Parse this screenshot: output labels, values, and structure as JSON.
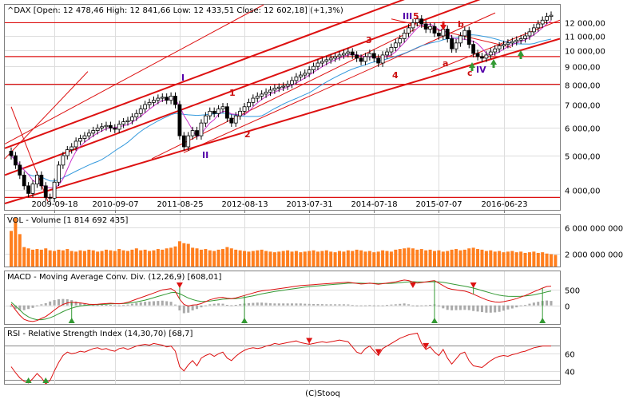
{
  "footer": "(C)Stooq",
  "colors": {
    "red": "#dd1111",
    "dark_red": "#aa0000",
    "purple": "#5500aa",
    "green": "#339933",
    "volume": "#ff7f1e",
    "ma_short": "#cc33cc",
    "ma_long": "#3399dd",
    "grey_bar": "#aaaaaa"
  },
  "chart_data": [
    {
      "type": "candlestick",
      "title": "^DAX [Open: 12 478,46  High: 12 841,66  Low: 12 433,51  Close: 12 602,18] (+1,3%)",
      "y_scale": "log",
      "ylim": [
        3500,
        13500
      ],
      "yticks": [
        {
          "v": 12000,
          "label": "12 000,00"
        },
        {
          "v": 11000,
          "label": "11 000,00"
        },
        {
          "v": 10000,
          "label": "10 000,00"
        },
        {
          "v": 9000,
          "label": "9 000,00"
        },
        {
          "v": 8000,
          "label": "8 000,00"
        },
        {
          "v": 7000,
          "label": "7 000,00"
        },
        {
          "v": 6000,
          "label": "6 000,00"
        },
        {
          "v": 5000,
          "label": "5 000,00"
        },
        {
          "v": 4000,
          "label": "4 000,00"
        }
      ],
      "xticks": [
        {
          "i": 10,
          "label": "2009-09-18"
        },
        {
          "i": 24,
          "label": "2010-09-07"
        },
        {
          "i": 39,
          "label": "2011-08-25"
        },
        {
          "i": 54,
          "label": "2012-08-13"
        },
        {
          "i": 69,
          "label": "2013-07-31"
        },
        {
          "i": 84,
          "label": "2014-07-18"
        },
        {
          "i": 99,
          "label": "2015-07-07"
        },
        {
          "i": 114,
          "label": "2016-06-23"
        }
      ],
      "close": [
        5000,
        4700,
        4400,
        4100,
        3900,
        4150,
        4400,
        4100,
        3800,
        3780,
        4200,
        4700,
        5000,
        5200,
        5300,
        5500,
        5600,
        5700,
        5800,
        5900,
        6000,
        6050,
        6100,
        6000,
        5950,
        6150,
        6250,
        6300,
        6450,
        6600,
        6800,
        7000,
        7100,
        7200,
        7300,
        7350,
        7200,
        7400,
        7000,
        5700,
        5300,
        5700,
        5900,
        5700,
        6200,
        6500,
        6700,
        6600,
        6800,
        6900,
        6400,
        6200,
        6500,
        6700,
        6900,
        7100,
        7300,
        7400,
        7500,
        7600,
        7700,
        7800,
        7850,
        7900,
        8000,
        8200,
        8400,
        8500,
        8600,
        8800,
        9000,
        9200,
        9300,
        9400,
        9500,
        9600,
        9700,
        9800,
        9900,
        9700,
        9500,
        9300,
        9600,
        9800,
        9500,
        9200,
        9700,
        9900,
        10200,
        10500,
        10800,
        11200,
        11600,
        12000,
        12300,
        11900,
        11500,
        11700,
        11200,
        11000,
        11500,
        10800,
        10100,
        10500,
        11000,
        11400,
        10400,
        9800,
        9600,
        9500,
        9700,
        9900,
        10100,
        10300,
        10400,
        10500,
        10600,
        10700,
        10800,
        11000,
        11300,
        11600,
        11900,
        12200,
        12500,
        12600
      ],
      "waves": {
        "I": "I",
        "II": "II",
        "III": "III",
        "IV": "IV",
        "w1": "1",
        "w2": "2",
        "w3": "3",
        "w4": "4",
        "w5": "5",
        "a": "a",
        "b": "b",
        "c": "c"
      }
    },
    {
      "type": "bar",
      "title": "VOL - Volume [1 814 692 435]",
      "ylim": [
        0,
        8000000000
      ],
      "yticks": [
        {
          "v": 6000000000,
          "label": "6 000 000 000"
        },
        {
          "v": 2000000000,
          "label": "2 000 000 000"
        }
      ],
      "values": [
        5500,
        7500,
        5000,
        3000,
        2800,
        2600,
        2700,
        2600,
        2800,
        2500,
        2400,
        2600,
        2500,
        2700,
        2400,
        2300,
        2500,
        2400,
        2600,
        2500,
        2300,
        2400,
        2600,
        2500,
        2400,
        2700,
        2500,
        2400,
        2600,
        2800,
        2500,
        2600,
        2400,
        2500,
        2700,
        2600,
        2800,
        2900,
        3100,
        3900,
        3600,
        3500,
        2900,
        2800,
        2600,
        2700,
        2500,
        2400,
        2600,
        2700,
        3000,
        2800,
        2600,
        2500,
        2400,
        2300,
        2400,
        2500,
        2600,
        2400,
        2300,
        2200,
        2300,
        2400,
        2500,
        2300,
        2400,
        2200,
        2300,
        2400,
        2500,
        2300,
        2400,
        2500,
        2300,
        2200,
        2400,
        2300,
        2500,
        2400,
        2600,
        2500,
        2300,
        2400,
        2200,
        2300,
        2500,
        2400,
        2300,
        2600,
        2700,
        2800,
        2900,
        2800,
        2600,
        2700,
        2500,
        2600,
        2400,
        2500,
        2300,
        2400,
        2600,
        2700,
        2500,
        2600,
        2800,
        2900,
        2700,
        2600,
        2400,
        2500,
        2300,
        2400,
        2200,
        2300,
        2400,
        2200,
        2300,
        2100,
        2200,
        2300,
        2100,
        2200,
        2000,
        1900,
        1800
      ]
    },
    {
      "type": "line",
      "title": "MACD - Moving Average Conv. Div. (12,26,9) [608,01]",
      "ylim": [
        -600,
        1100
      ],
      "yticks": [
        {
          "v": 500,
          "label": "500"
        },
        {
          "v": 0,
          "label": "0"
        }
      ],
      "series": [
        {
          "values": [
            50,
            -150,
            -320,
            -450,
            -500,
            -520,
            -490,
            -420,
            -360,
            -260,
            -150,
            -50,
            30,
            80,
            100,
            90,
            80,
            60,
            40,
            30,
            35,
            50,
            60,
            70,
            60,
            55,
            70,
            100,
            150,
            200,
            250,
            300,
            350,
            400,
            450,
            500,
            520,
            540,
            450,
            200,
            30,
            -20,
            10,
            20,
            60,
            120,
            180,
            220,
            250,
            260,
            230,
            220,
            240,
            280,
            320,
            360,
            400,
            440,
            470,
            490,
            500,
            520,
            540,
            560,
            580,
            600,
            620,
            640,
            650,
            660,
            670,
            680,
            690,
            700,
            710,
            720,
            730,
            740,
            750,
            730,
            710,
            690,
            700,
            720,
            700,
            680,
            700,
            720,
            740,
            760,
            790,
            820,
            800,
            760,
            720,
            740,
            760,
            780,
            800,
            720,
            640,
            560,
            520,
            500,
            480,
            460,
            420,
            360,
            300,
            240,
            180,
            140,
            110,
            100,
            120,
            150,
            180,
            220,
            270,
            320,
            380,
            440,
            500,
            560,
            610,
            620
          ]
        },
        {
          "values": [
            100,
            -20,
            -150,
            -280,
            -370,
            -430,
            -460,
            -460,
            -440,
            -400,
            -340,
            -270,
            -200,
            -140,
            -90,
            -50,
            -20,
            0,
            10,
            20,
            25,
            30,
            40,
            50,
            55,
            55,
            60,
            70,
            90,
            110,
            140,
            170,
            210,
            250,
            290,
            330,
            370,
            410,
            420,
            380,
            310,
            240,
            190,
            150,
            130,
            130,
            140,
            160,
            180,
            200,
            210,
            215,
            220,
            235,
            255,
            280,
            310,
            340,
            370,
            400,
            425,
            450,
            470,
            490,
            510,
            530,
            550,
            570,
            590,
            605,
            620,
            630,
            645,
            660,
            670,
            680,
            690,
            700,
            715,
            720,
            720,
            715,
            710,
            710,
            710,
            705,
            705,
            705,
            710,
            720,
            735,
            750,
            760,
            765,
            760,
            755,
            755,
            760,
            765,
            760,
            745,
            720,
            695,
            670,
            645,
            620,
            590,
            560,
            520,
            480,
            440,
            400,
            360,
            330,
            310,
            295,
            290,
            290,
            295,
            305,
            320,
            340,
            370,
            400,
            435,
            460
          ]
        }
      ]
    },
    {
      "type": "line",
      "title": "RSI - Relative Strength Index (14,30,70) [68,7]",
      "ylim": [
        25,
        90
      ],
      "yticks": [
        {
          "v": 60,
          "label": "60"
        },
        {
          "v": 40,
          "label": "40"
        }
      ],
      "series": [
        {
          "values": [
            45,
            38,
            32,
            28,
            26,
            31,
            37,
            32,
            25,
            29,
            40,
            50,
            58,
            62,
            60,
            61,
            63,
            62,
            64,
            66,
            67,
            65,
            66,
            64,
            63,
            66,
            67,
            65,
            67,
            69,
            70,
            71,
            70,
            72,
            71,
            70,
            68,
            69,
            63,
            45,
            40,
            47,
            52,
            46,
            55,
            58,
            60,
            57,
            60,
            62,
            55,
            52,
            57,
            61,
            64,
            66,
            67,
            66,
            67,
            69,
            70,
            72,
            71,
            72,
            73,
            74,
            75,
            73,
            72,
            71,
            72,
            73,
            74,
            73,
            74,
            75,
            76,
            75,
            74,
            68,
            62,
            60,
            66,
            69,
            63,
            58,
            66,
            69,
            72,
            75,
            78,
            80,
            82,
            83,
            84,
            72,
            65,
            68,
            62,
            58,
            65,
            55,
            48,
            54,
            60,
            62,
            52,
            46,
            45,
            44,
            48,
            52,
            55,
            57,
            58,
            57,
            59,
            60,
            62,
            63,
            65,
            67,
            68,
            69,
            69,
            69
          ]
        }
      ]
    }
  ]
}
